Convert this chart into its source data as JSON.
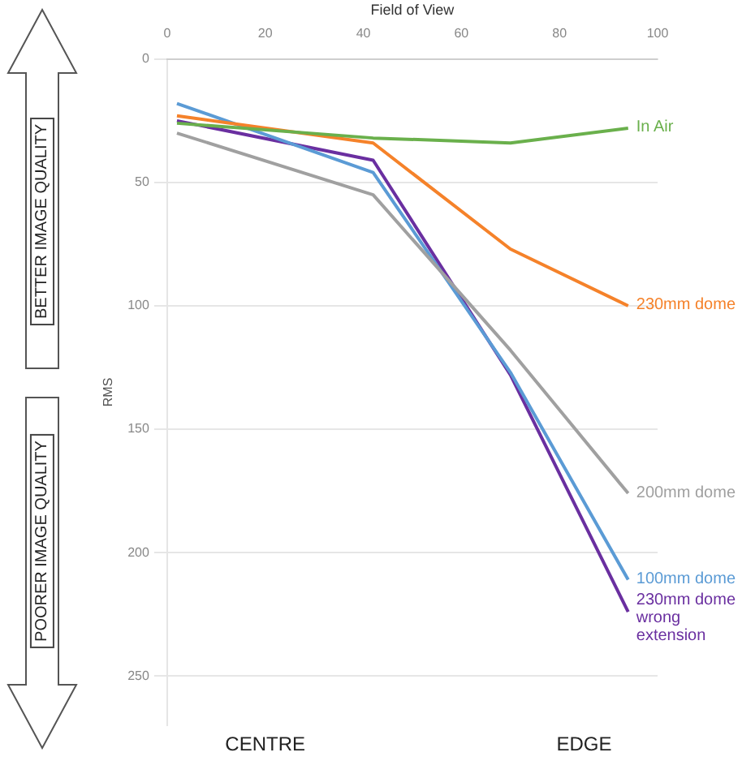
{
  "chart_data": {
    "type": "line",
    "xlabel": "Field of View",
    "ylabel": "RMS",
    "x": [
      2,
      42,
      70,
      94
    ],
    "xlim": [
      0,
      100
    ],
    "xticks": [
      0,
      20,
      40,
      60,
      80,
      100
    ],
    "ylim": [
      270,
      0
    ],
    "yticks": [
      0,
      50,
      100,
      150,
      200,
      250
    ],
    "grid": "y",
    "legend": false,
    "marker": "none",
    "line_style": "solid",
    "series": [
      {
        "name": "In Air",
        "color": "#6ab04c",
        "values": [
          26,
          32,
          34,
          28
        ]
      },
      {
        "name": "230mm dome",
        "color": "#f5822a",
        "values": [
          23,
          34,
          77,
          100
        ]
      },
      {
        "name": "200mm dome",
        "color": "#a0a0a0",
        "values": [
          30,
          55,
          118,
          176
        ]
      },
      {
        "name": "100mm dome",
        "color": "#5b9bd5",
        "values": [
          18,
          46,
          127,
          211
        ]
      },
      {
        "name": "230mm dome wrong extension",
        "color": "#6a2fa0",
        "values": [
          25,
          41,
          128,
          224
        ]
      }
    ],
    "annotations": [
      "BETTER IMAGE QUALITY",
      "POORER IMAGE QUALITY",
      "CENTRE",
      "EDGE"
    ]
  }
}
